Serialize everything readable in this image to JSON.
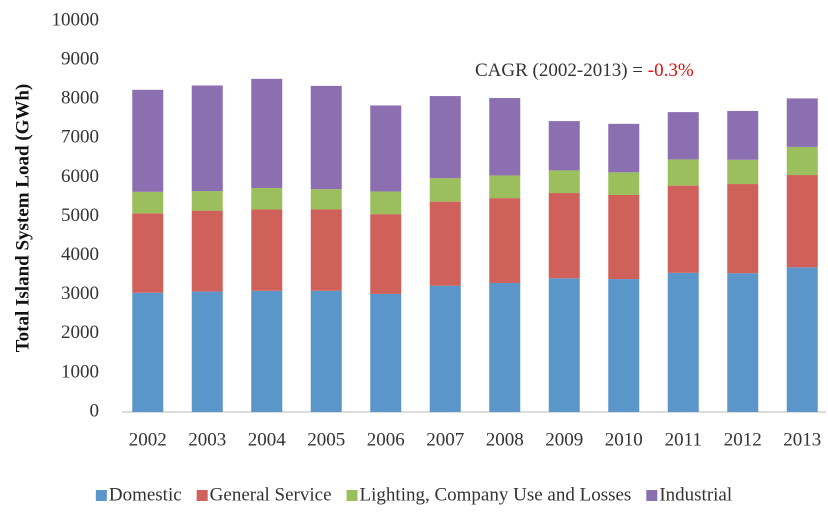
{
  "chart_data": {
    "type": "stacked_bar",
    "y_label": "Total Island System Load (GWh)",
    "annotation": {
      "text": "CAGR (2002-2013) = ",
      "value": "-0.3%",
      "value_color": "#e01010"
    },
    "categories": [
      "2002",
      "2003",
      "2004",
      "2005",
      "2006",
      "2007",
      "2008",
      "2009",
      "2010",
      "2011",
      "2012",
      "2013"
    ],
    "series": [
      {
        "name": "Domestic",
        "color": "#5b96cb",
        "values": [
          3050,
          3080,
          3100,
          3100,
          3020,
          3230,
          3300,
          3420,
          3400,
          3560,
          3550,
          3700
        ]
      },
      {
        "name": "General Service",
        "color": "#d0605a",
        "values": [
          2030,
          2070,
          2080,
          2080,
          2040,
          2150,
          2170,
          2180,
          2150,
          2230,
          2280,
          2360
        ]
      },
      {
        "name": "Lighting, Company Use and Losses",
        "color": "#9bbf5c",
        "values": [
          550,
          500,
          550,
          520,
          580,
          600,
          580,
          580,
          580,
          670,
          620,
          720
        ]
      },
      {
        "name": "Industrial",
        "color": "#8c6fb0",
        "values": [
          2610,
          2700,
          2790,
          2640,
          2200,
          2100,
          1980,
          1260,
          1240,
          1210,
          1250,
          1240
        ]
      }
    ],
    "ylim": [
      0,
      10000
    ],
    "yticks": [
      0,
      1000,
      2000,
      3000,
      4000,
      5000,
      6000,
      7000,
      8000,
      9000,
      10000
    ],
    "grid": false
  }
}
